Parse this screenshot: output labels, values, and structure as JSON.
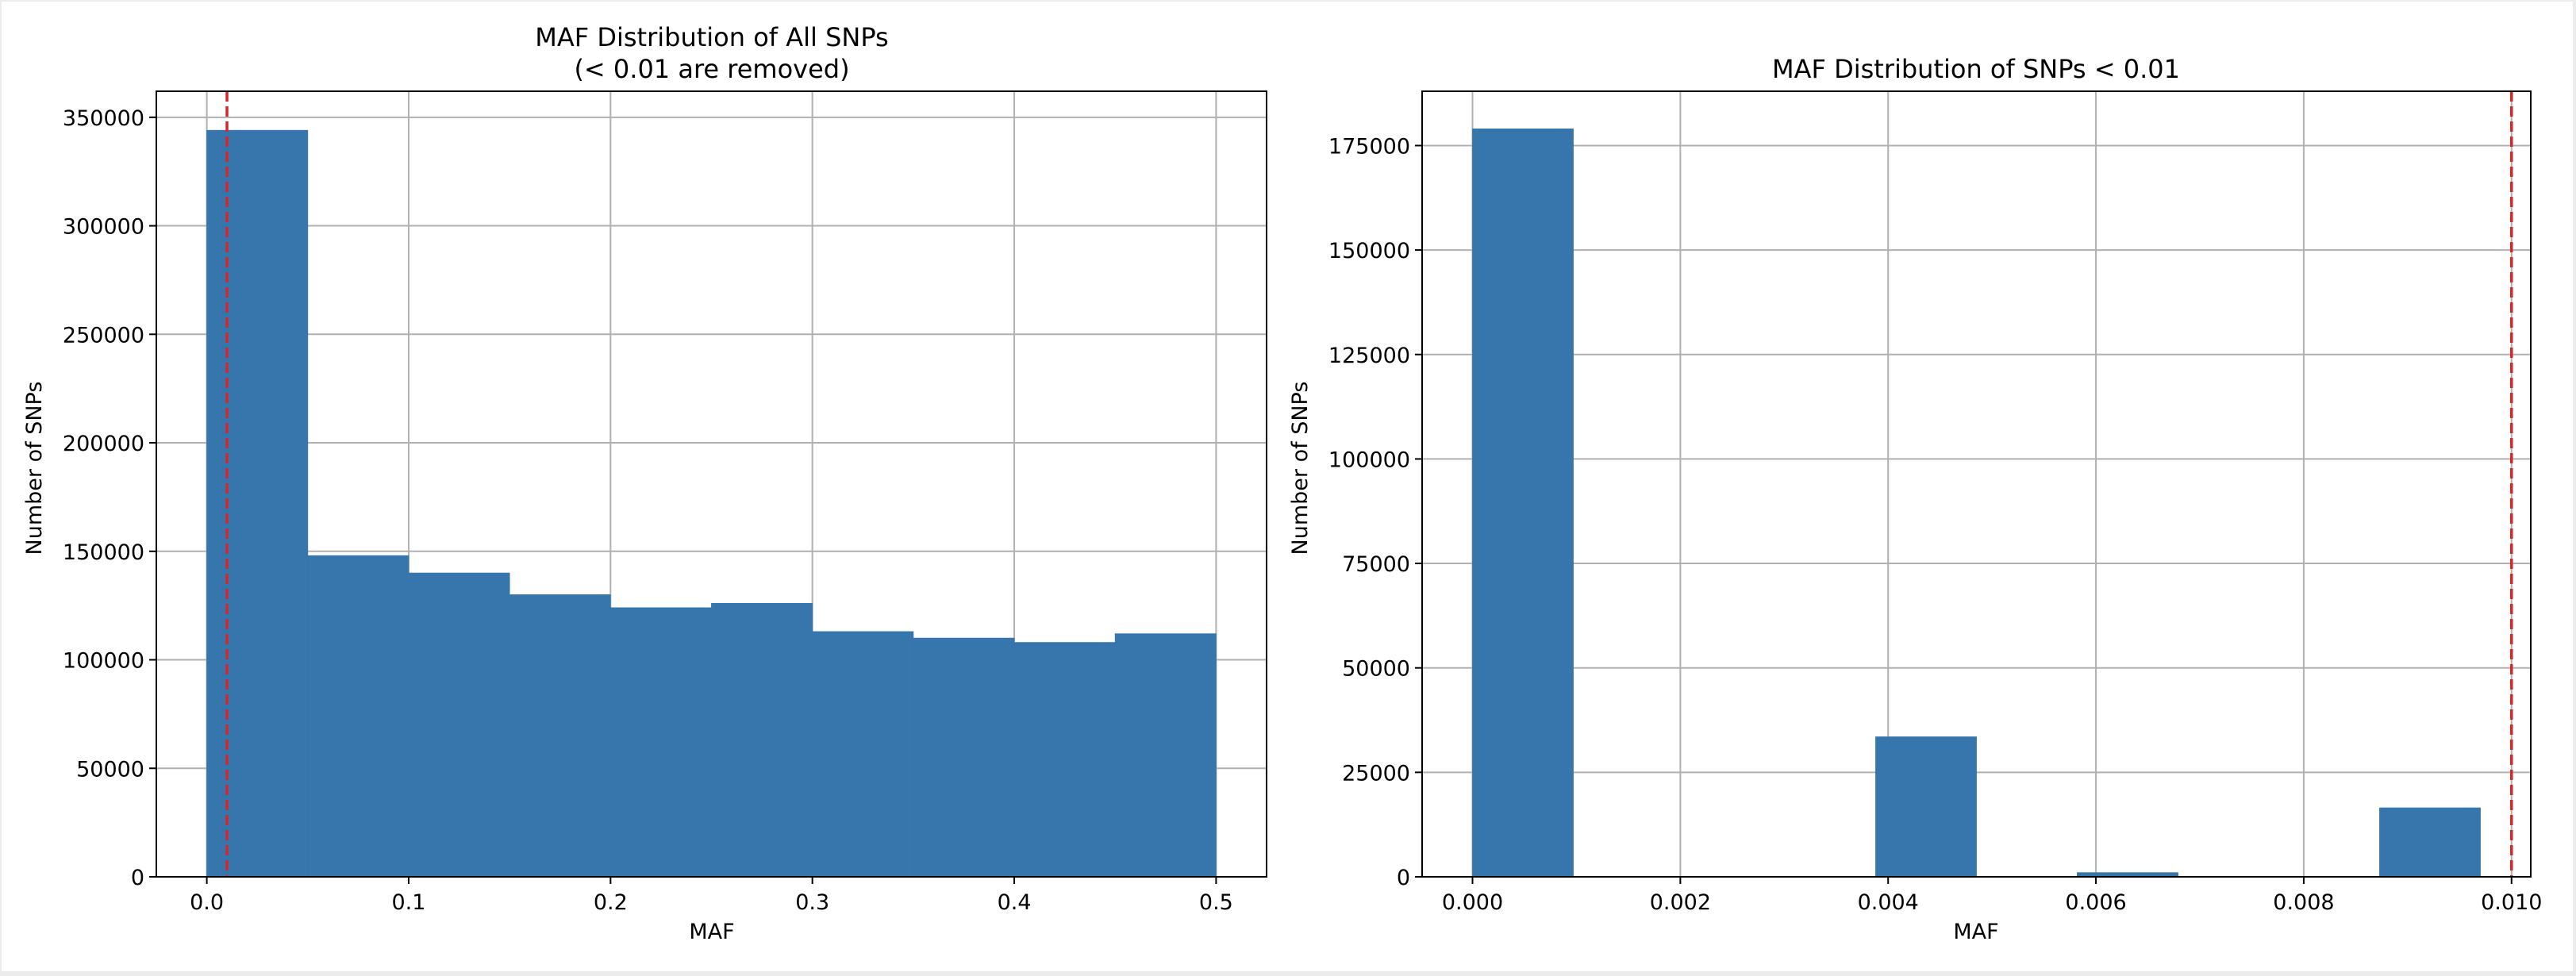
{
  "chart_data": [
    {
      "type": "bar",
      "title": "MAF Distribution of All SNPs",
      "subtitle": "(< 0.01 are removed)",
      "xlabel": "MAF",
      "ylabel": "Number of SNPs",
      "xlim": [
        -0.025,
        0.525
      ],
      "ylim": [
        0,
        362000
      ],
      "xticks": [
        0.0,
        0.1,
        0.2,
        0.3,
        0.4,
        0.5
      ],
      "xtick_labels": [
        "0.0",
        "0.1",
        "0.2",
        "0.3",
        "0.4",
        "0.5"
      ],
      "yticks": [
        0,
        50000,
        100000,
        150000,
        200000,
        250000,
        300000,
        350000
      ],
      "ytick_labels": [
        "0",
        "50000",
        "100000",
        "150000",
        "200000",
        "250000",
        "300000",
        "350000"
      ],
      "grid": true,
      "bin_edges": [
        0.0,
        0.05,
        0.1,
        0.15,
        0.2,
        0.25,
        0.3,
        0.35,
        0.4,
        0.45,
        0.5
      ],
      "values": [
        344000,
        148000,
        140000,
        130000,
        124000,
        126000,
        113000,
        110000,
        108000,
        112000
      ],
      "threshold": 0.01,
      "bar_color": "#3775ad",
      "threshold_color": "#d62728"
    },
    {
      "type": "bar",
      "title": "MAF Distribution of SNPs < 0.01",
      "xlabel": "MAF",
      "ylabel": "Number of SNPs",
      "xlim": [
        -0.000485,
        0.010185
      ],
      "ylim": [
        0,
        188000
      ],
      "xticks": [
        0.0,
        0.002,
        0.004,
        0.006,
        0.008,
        0.01
      ],
      "xtick_labels": [
        "0.000",
        "0.002",
        "0.004",
        "0.006",
        "0.008",
        "0.010"
      ],
      "yticks": [
        0,
        25000,
        50000,
        75000,
        100000,
        125000,
        150000,
        175000
      ],
      "ytick_labels": [
        "0",
        "25000",
        "50000",
        "75000",
        "100000",
        "125000",
        "150000",
        "175000"
      ],
      "grid": true,
      "bin_edges": [
        0.0,
        0.00097,
        0.00194,
        0.00291,
        0.00388,
        0.00485,
        0.00582,
        0.00679,
        0.00776,
        0.00873,
        0.0097
      ],
      "values": [
        179000,
        0,
        0,
        0,
        33500,
        0,
        1000,
        0,
        0,
        16500
      ],
      "threshold": 0.01,
      "bar_color": "#3775ad",
      "threshold_color": "#d62728"
    }
  ]
}
